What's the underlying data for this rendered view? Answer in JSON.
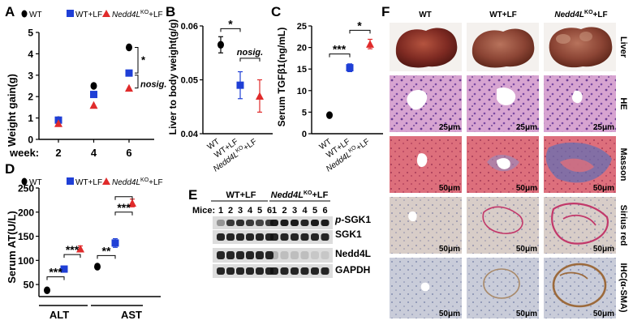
{
  "panel_letters": [
    "A",
    "B",
    "C",
    "D",
    "E",
    "F"
  ],
  "legend": {
    "wt": "WT",
    "wt_lf": "WT+LF",
    "ko_prefix": "Nedd4L",
    "ko_sup": "KO",
    "ko_suffix": "+LF"
  },
  "colors": {
    "wt": "#000000",
    "wt_lf": "#1f3fd6",
    "ko": "#e02b2b"
  },
  "chart_data": [
    {
      "panel": "A",
      "type": "scatter",
      "title": "",
      "xlabel": "week:",
      "ylabel": "Weight gain(g)",
      "x": [
        2,
        4,
        6
      ],
      "ylim": [
        0,
        5
      ],
      "yticks": [
        0,
        1,
        2,
        3,
        4,
        5
      ],
      "series": [
        {
          "name": "WT",
          "values": [
            0.9,
            2.5,
            4.3
          ]
        },
        {
          "name": "WT+LF",
          "values": [
            0.9,
            2.1,
            3.1
          ]
        },
        {
          "name": "Nedd4L KO+LF",
          "values": [
            0.75,
            1.6,
            2.4
          ]
        }
      ],
      "annotations": [
        "*",
        "nosig."
      ]
    },
    {
      "panel": "B",
      "type": "scatter",
      "title": "",
      "ylabel": "Liver to body weight(g/g)",
      "categories": [
        "WT",
        "WT+LF",
        "Nedd4L KO+LF"
      ],
      "values": [
        0.0565,
        0.049,
        0.047
      ],
      "errors": [
        0.0015,
        0.0025,
        0.003
      ],
      "ylim": [
        0.04,
        0.06
      ],
      "yticks": [
        0.04,
        0.05,
        0.06
      ],
      "annotations": [
        "*",
        "nosig."
      ]
    },
    {
      "panel": "C",
      "type": "scatter",
      "title": "",
      "ylabel": "Serum TGFβ1(ng/mL)",
      "categories": [
        "WT",
        "WT+LF",
        "Nedd4L KO+LF"
      ],
      "values": [
        4.3,
        15.3,
        20.8
      ],
      "errors": [
        0.3,
        0.9,
        1.1
      ],
      "ylim": [
        0,
        25
      ],
      "yticks": [
        0,
        5,
        10,
        15,
        20,
        25
      ],
      "annotations": [
        "***",
        "*"
      ]
    },
    {
      "panel": "D",
      "type": "scatter",
      "title": "",
      "ylabel": "Serum AT(U/L)",
      "groups": [
        "ALT",
        "AST"
      ],
      "ylim": [
        25,
        250
      ],
      "yticks": [
        50,
        100,
        150,
        200,
        250
      ],
      "series": [
        {
          "name": "WT",
          "values": [
            38,
            87
          ],
          "errors": [
            2,
            4
          ]
        },
        {
          "name": "WT+LF",
          "values": [
            82,
            136
          ],
          "errors": [
            4,
            9
          ]
        },
        {
          "name": "Nedd4L KO+LF",
          "values": [
            124,
            219
          ],
          "errors": [
            6,
            8
          ]
        }
      ],
      "annotations": [
        "***",
        "***",
        "**",
        "***"
      ]
    }
  ],
  "western_blot": {
    "group1": "WT+LF",
    "group2_prefix": "Nedd4L",
    "group2_sup": "KO",
    "group2_suffix": "+LF",
    "mice_label": "Mice:",
    "mice": [
      "1",
      "2",
      "3",
      "4",
      "5",
      "6",
      "1",
      "2",
      "3",
      "4",
      "5",
      "6"
    ],
    "bands": [
      "p-SGK1",
      "SGK1",
      "Nedd4L",
      "GAPDH"
    ],
    "band_p_italic": "p",
    "band_p_rest": "-SGK1"
  },
  "histology": {
    "columns": [
      "WT",
      "WT+LF"
    ],
    "col3_prefix": "Nedd4L",
    "col3_sup": "KO",
    "col3_suffix": "+LF",
    "rows": [
      "Liver",
      "HE",
      "Masson",
      "Sirius red",
      "IHC(α-SMA)"
    ],
    "scalebars": [
      "",
      "25μm",
      "50μm",
      "50μm",
      "50μm"
    ]
  }
}
